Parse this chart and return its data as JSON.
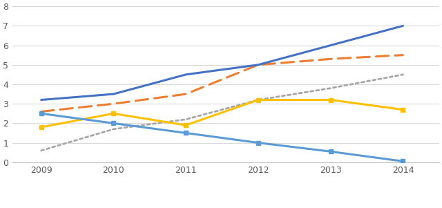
{
  "years": [
    2009,
    2010,
    2011,
    2012,
    2013,
    2014
  ],
  "strawberry": [
    3.2,
    3.5,
    4.5,
    5.0,
    6.0,
    7.0
  ],
  "raspberry": [
    2.6,
    3.0,
    3.5,
    5.0,
    5.3,
    5.5
  ],
  "grape": [
    0.6,
    1.7,
    2.2,
    3.2,
    3.8,
    4.5
  ],
  "cherry": [
    1.8,
    2.5,
    1.9,
    3.2,
    3.2,
    2.7
  ],
  "plum": [
    2.5,
    2.0,
    1.5,
    1.0,
    0.55,
    0.05
  ],
  "strawberry_color": "#4472C4",
  "raspberry_color": "#ED7D31",
  "grape_color": "#A6A6A6",
  "cherry_color": "#FFC000",
  "plum_color": "#5B9BD5",
  "ylim": [
    0,
    8
  ],
  "yticks": [
    0,
    1,
    2,
    3,
    4,
    5,
    6,
    7,
    8
  ],
  "background_color": "#FFFFFF",
  "grid_color": "#D9D9D9"
}
